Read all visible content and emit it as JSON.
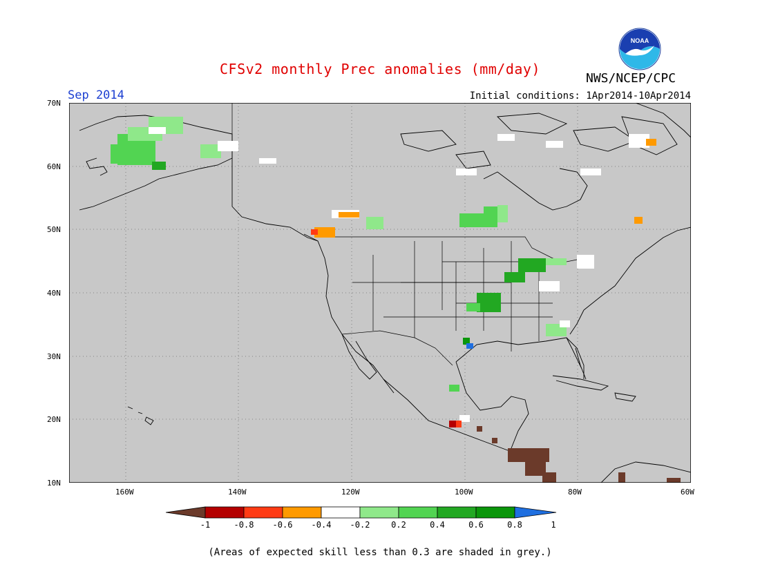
{
  "title": "CFSv2 monthly Prec anomalies (mm/day)",
  "month_label": "Sep 2014",
  "initial_conditions": "Initial conditions: 1Apr2014-10Apr2014",
  "agency": "NWS/NCEP/CPC",
  "logo_text": "NOAA",
  "footnote": "(Areas of expected skill less than 0.3 are shaded in grey.)",
  "map": {
    "lon_range": [
      -170,
      -60
    ],
    "lat_range": [
      10,
      70
    ],
    "lon_ticks": [
      "160W",
      "140W",
      "120W",
      "100W",
      "80W",
      "60W"
    ],
    "lat_ticks": [
      "70N",
      "60N",
      "50N",
      "40N",
      "30N",
      "20N",
      "10N"
    ],
    "background_color": "#c8c8c8",
    "gridlines": "dotted"
  },
  "colorbar": {
    "labels": [
      "-1",
      "-0.8",
      "-0.6",
      "-0.4",
      "-0.2",
      "0.2",
      "0.4",
      "0.6",
      "0.8",
      "1"
    ],
    "colors": [
      "#6b3a2a",
      "#b40000",
      "#ff3b14",
      "#ff9a00",
      "#ffffff",
      "#8fe88a",
      "#52d452",
      "#22a822",
      "#0a960a",
      "#1f6fe0"
    ]
  },
  "colors": {
    "title": "#e00000",
    "month": "#1c3fd1",
    "ocean_land": "#c8c8c8"
  }
}
